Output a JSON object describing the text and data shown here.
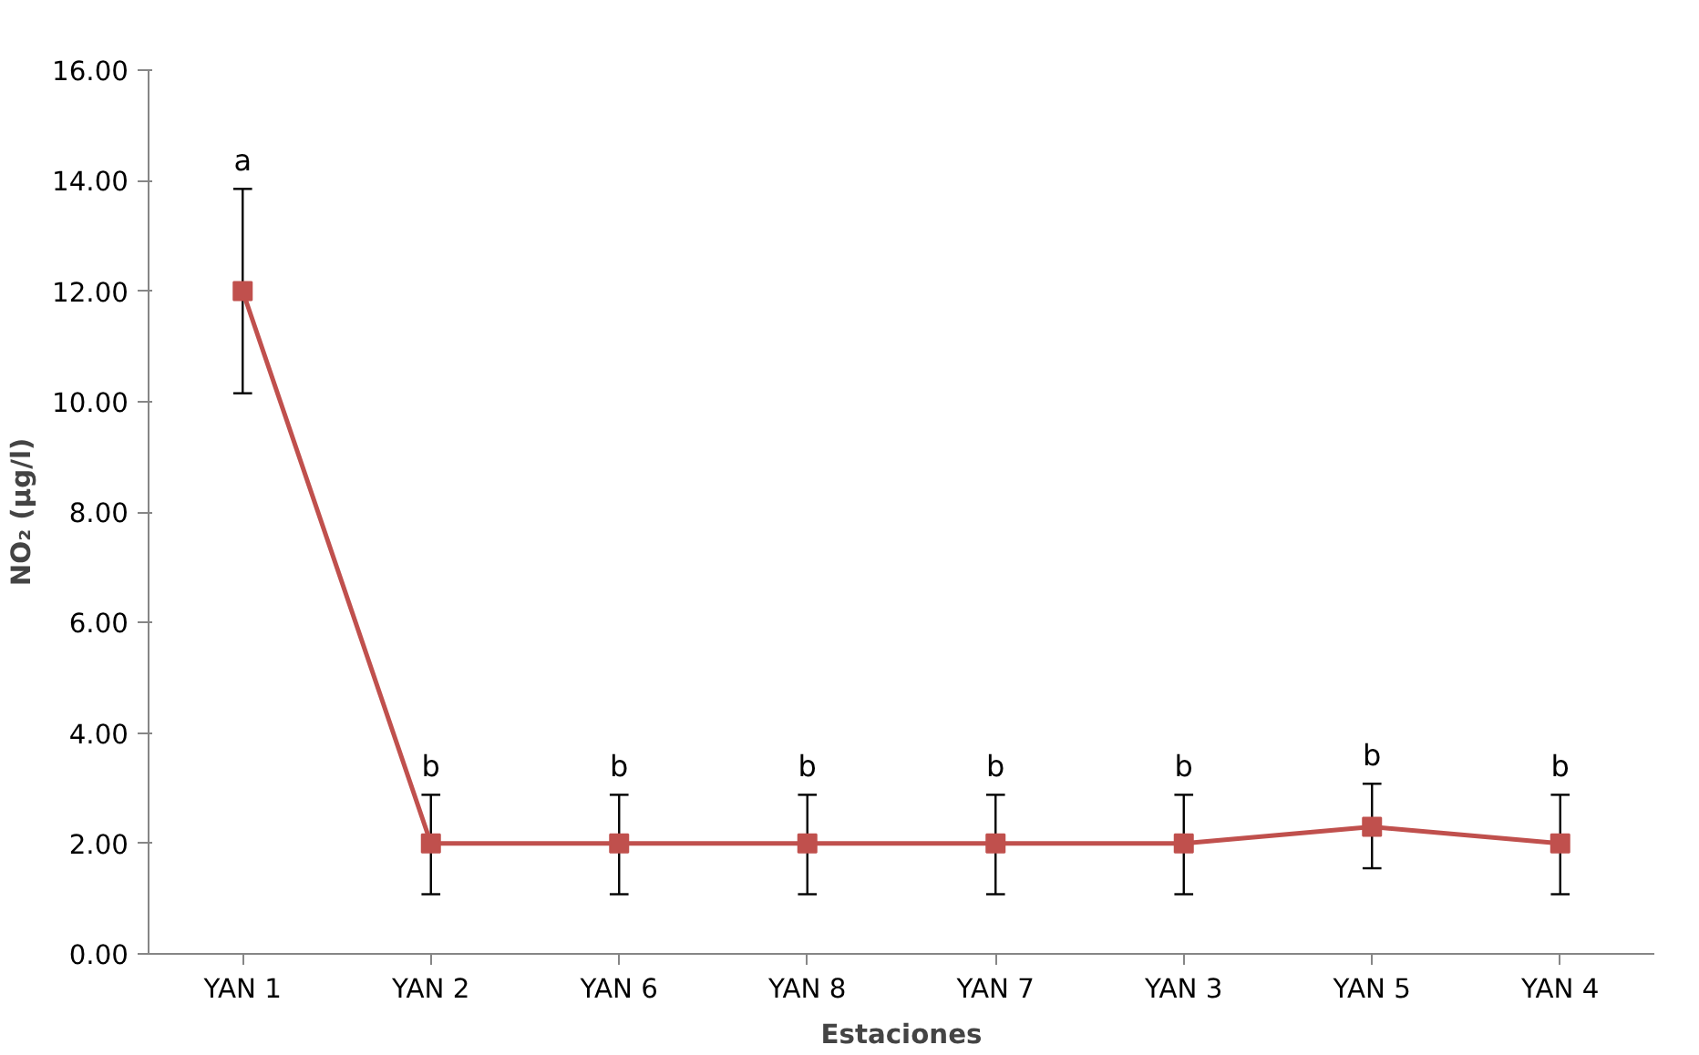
{
  "chart_data": {
    "type": "line",
    "xlabel": "Estaciones",
    "ylabel": "NO₂ (µg/l)",
    "categories": [
      "YAN 1",
      "YAN 2",
      "YAN 6",
      "YAN 8",
      "YAN 7",
      "YAN 3",
      "YAN 5",
      "YAN 4"
    ],
    "series": [
      {
        "color": "#c0504d",
        "values": [
          12.0,
          2.0,
          2.0,
          2.0,
          2.0,
          2.0,
          2.3,
          2.0
        ],
        "errors": [
          [
            10.15,
            13.85
          ],
          [
            1.08,
            2.88
          ],
          [
            1.08,
            2.88
          ],
          [
            1.08,
            2.88
          ],
          [
            1.08,
            2.88
          ],
          [
            1.08,
            2.88
          ],
          [
            1.55,
            3.08
          ],
          [
            1.08,
            2.88
          ]
        ]
      }
    ],
    "ylim": [
      0,
      16
    ],
    "yticks": [
      {
        "value": 0,
        "label": "0.00"
      },
      {
        "value": 2,
        "label": "2.00"
      },
      {
        "value": 4,
        "label": "4.00"
      },
      {
        "value": 6,
        "label": "6.00"
      },
      {
        "value": 8,
        "label": "8.00"
      },
      {
        "value": 10,
        "label": "10.00"
      },
      {
        "value": 12,
        "label": "12.00"
      },
      {
        "value": 14,
        "label": "14.00"
      },
      {
        "value": 16,
        "label": "16.00"
      }
    ],
    "marker": "square",
    "grid": false,
    "annotations": [
      "a",
      "b",
      "b",
      "b",
      "b",
      "b",
      "b",
      "b"
    ]
  }
}
